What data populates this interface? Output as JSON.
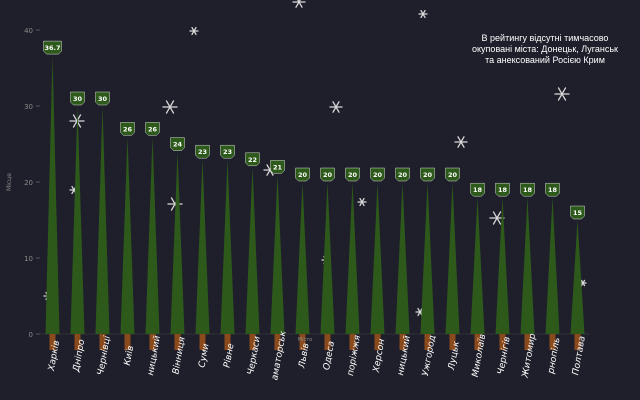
{
  "title": "",
  "note": "В рейтингу відсутні тимчасово окуповані міста: Донецьк, Луганськ та анексований Росією Крим",
  "colors": {
    "background": "#1f1f2b",
    "tree": "#2d5a1b",
    "trunk": "#8a4a1c",
    "label_bg": "#2d5a1b",
    "snow": "#d9d9d9"
  },
  "chart_data": {
    "type": "bar",
    "xlabel": "Місто",
    "ylabel": "Місце",
    "ylim": [
      0,
      40
    ],
    "yticks": [
      0,
      10,
      20,
      30,
      40
    ],
    "categories": [
      "Харків",
      "Дніпро",
      "Чернівці",
      "Київ",
      "Кропивницький",
      "Вінниця",
      "Суми",
      "Рівне",
      "Черкаси",
      "Краматорськ",
      "Львів",
      "Одеса",
      "Запоріжжя",
      "Херсон",
      "Хмельницький",
      "Ужгород",
      "Луцьк",
      "Миколаїв",
      "Чернігів",
      "Житомир",
      "Тернопіль",
      "Полтава"
    ],
    "tick_labels": [
      "Харків",
      "Дніпро",
      "Чернівці",
      "Київ",
      "ницький",
      "Вінниця",
      "Суми",
      "Рівне",
      "Черкаси",
      "аматорськ",
      "Львів",
      "Одеса",
      "поріжжя",
      "Херсон",
      "ницький",
      "Ужгород",
      "Луцьк",
      "Миколаїв",
      "Чернігів",
      "Житомир",
      "рнопіль",
      "Полтава"
    ],
    "values": [
      36.7,
      30,
      30,
      26,
      26,
      24,
      23,
      23,
      22,
      21,
      20,
      20,
      20,
      20,
      20,
      20,
      20,
      18,
      18,
      18,
      18,
      15
    ],
    "data_labels": [
      "36.7",
      "30",
      "30",
      "26",
      "26",
      "24",
      "23",
      "23",
      "22",
      "21",
      "20",
      "20",
      "20",
      "20",
      "20",
      "20",
      "20",
      "18",
      "18",
      "18",
      "18",
      "15"
    ],
    "grid": false,
    "legend": "none"
  }
}
